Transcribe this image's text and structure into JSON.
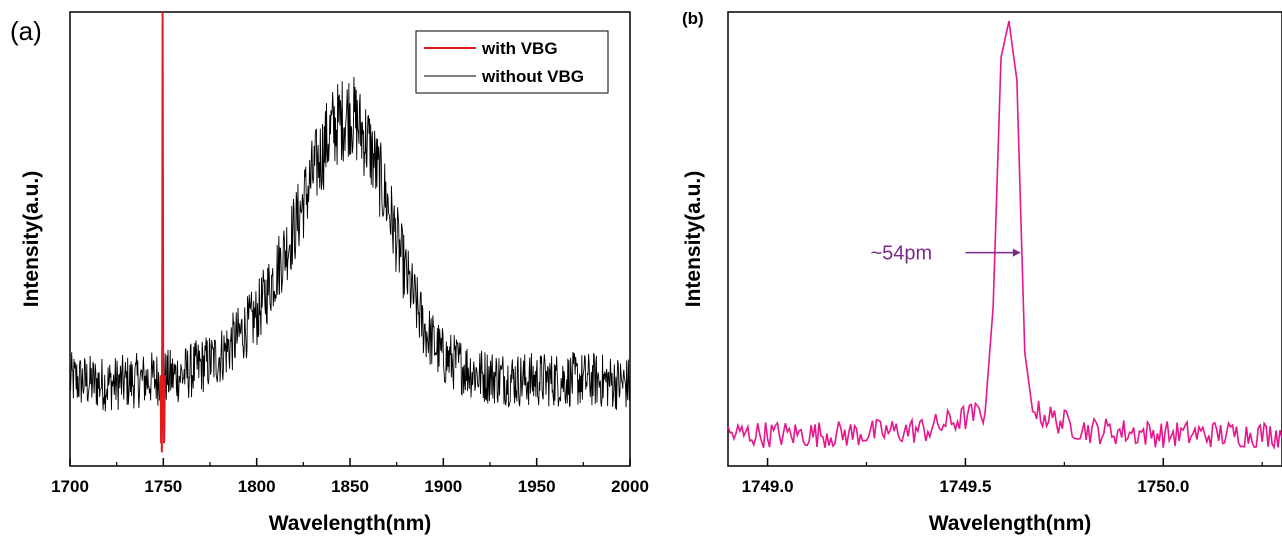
{
  "chart_data": [
    {
      "panel": "(a)",
      "type": "line",
      "xlabel": "Wavelength(nm)",
      "ylabel": "Intensity(a.u.)",
      "xlim": [
        1700,
        2000
      ],
      "ylim": [
        0,
        1
      ],
      "xticks": [
        "1700",
        "1750",
        "1800",
        "1850",
        "1900",
        "1950",
        "2000"
      ],
      "yticks_shown": false,
      "legend": {
        "placement": "top-right",
        "entries": [
          "with VBG",
          "without VBG"
        ]
      },
      "series": [
        {
          "name": "with VBG",
          "color": "#e31a1c",
          "x": [
            1748.6,
            1748.8,
            1749.0,
            1749.2,
            1749.4,
            1749.6,
            1749.8,
            1750.0,
            1750.2,
            1750.4,
            1750.6,
            1750.8
          ],
          "y": [
            0.2,
            0.05,
            0.12,
            0.03,
            0.3,
            1.0,
            0.6,
            0.08,
            0.15,
            0.05,
            0.1,
            0.2
          ]
        },
        {
          "name": "without VBG",
          "color": "#000000",
          "description": "broad noisy emission band",
          "x": [
            1700,
            1720,
            1740,
            1760,
            1780,
            1800,
            1820,
            1830,
            1840,
            1850,
            1860,
            1870,
            1880,
            1890,
            1900,
            1920,
            1940,
            1960,
            1980,
            2000
          ],
          "y": [
            0.19,
            0.18,
            0.19,
            0.2,
            0.24,
            0.33,
            0.52,
            0.64,
            0.74,
            0.78,
            0.71,
            0.58,
            0.42,
            0.3,
            0.24,
            0.2,
            0.19,
            0.19,
            0.19,
            0.18
          ],
          "noise_amplitude": 0.05
        }
      ]
    },
    {
      "panel": "(b)",
      "type": "line",
      "xlabel": "Wavelength(nm)",
      "ylabel": "Intensity(a.u.)",
      "xlim": [
        1748.9,
        1750.3
      ],
      "ylim": [
        0,
        1
      ],
      "xticks": [
        "1749.0",
        "1749.5",
        "1750.0"
      ],
      "xtick_values": [
        1749.0,
        1749.5,
        1750.0
      ],
      "yticks_shown": false,
      "series": [
        {
          "color": "#e8158c",
          "x": [
            1748.9,
            1749.0,
            1749.2,
            1749.4,
            1749.55,
            1749.57,
            1749.59,
            1749.61,
            1749.63,
            1749.65,
            1749.67,
            1749.8,
            1750.0,
            1750.2,
            1750.3
          ],
          "y": [
            0.07,
            0.07,
            0.07,
            0.08,
            0.12,
            0.35,
            0.9,
            0.98,
            0.85,
            0.25,
            0.12,
            0.08,
            0.07,
            0.07,
            0.07
          ],
          "noise_amplitude": 0.03
        }
      ],
      "annotation": {
        "text": "~54pm",
        "color": "#7b2a8a",
        "x": 1749.6,
        "y": 0.47
      }
    }
  ]
}
